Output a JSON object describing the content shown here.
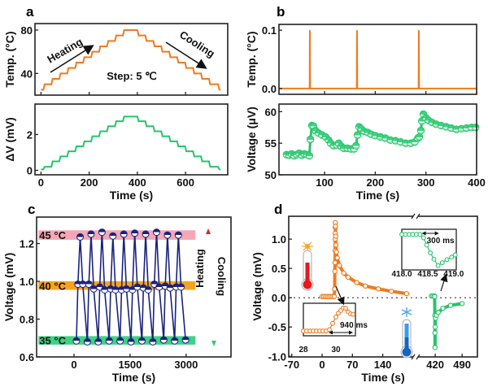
{
  "panel_labels": [
    "a",
    "b",
    "c",
    "d"
  ],
  "colors": {
    "orange": "#f07a1e",
    "green": "#27c46c",
    "navy": "#1a237e",
    "pink_band": "#f6a6b6",
    "orange_band": "#f7a21f",
    "green_band": "#3fd184"
  },
  "chart_data": [
    {
      "panel": "a-top",
      "type": "line",
      "xlim": [
        -25,
        775
      ],
      "ylim": [
        20,
        86
      ],
      "xticks": [
        "0",
        "200",
        "400",
        "600"
      ],
      "show_xtick_labels": false,
      "yticks": [
        "40",
        "80"
      ],
      "xlabel": "",
      "ylabel": "Temp. (°C)",
      "series": [
        {
          "style": "step",
          "color": "#f07a1e",
          "x": [
            0,
            10,
            43,
            76,
            109,
            142,
            175,
            208,
            241,
            274,
            307,
            340,
            400,
            433,
            466,
            499,
            532,
            565,
            598,
            631,
            664,
            697,
            735,
            740
          ],
          "y": [
            25,
            30,
            35,
            40,
            45,
            50,
            55,
            60,
            65,
            70,
            75,
            80,
            75,
            70,
            65,
            60,
            55,
            50,
            45,
            40,
            35,
            30,
            25,
            25
          ]
        }
      ],
      "annotations": [
        "Heating",
        "Cooling",
        "Step: 5 ℃"
      ]
    },
    {
      "panel": "a-bottom",
      "type": "line",
      "xlim": [
        -25,
        775
      ],
      "ylim": [
        -0.25,
        3.7
      ],
      "xticks": [
        "0",
        "200",
        "400",
        "600"
      ],
      "show_xtick_labels": true,
      "yticks": [
        "0",
        "2"
      ],
      "xlabel": "Time (s)",
      "ylabel": "ΔV (mV)",
      "series": [
        {
          "style": "step",
          "color": "#27c46c",
          "x": [
            0,
            10,
            43,
            76,
            109,
            142,
            175,
            208,
            241,
            274,
            307,
            340,
            400,
            433,
            466,
            499,
            532,
            565,
            598,
            631,
            664,
            697,
            735,
            740
          ],
          "y": [
            0.05,
            0.2,
            0.5,
            0.78,
            1.06,
            1.34,
            1.62,
            1.9,
            2.18,
            2.46,
            2.74,
            3.0,
            2.74,
            2.46,
            2.18,
            1.9,
            1.62,
            1.34,
            1.06,
            0.78,
            0.5,
            0.2,
            0.05,
            0.05
          ]
        }
      ]
    },
    {
      "panel": "b-top",
      "type": "line",
      "xlim": [
        10,
        400
      ],
      "ylim": [
        -0.01,
        0.11
      ],
      "xticks": [
        "100",
        "200",
        "300",
        "400"
      ],
      "show_xtick_labels": false,
      "yticks": [
        "0.0",
        "0.1"
      ],
      "xlabel": "",
      "ylabel": "Temp. (°C)",
      "series": [
        {
          "style": "line",
          "color": "#f07a1e",
          "points": [
            [
              10,
              0
            ],
            [
              70.5,
              0
            ],
            [
              71,
              0.1
            ],
            [
              71.5,
              0
            ],
            [
              163.5,
              0
            ],
            [
              164,
              0.1
            ],
            [
              164.5,
              0
            ],
            [
              285.5,
              0
            ],
            [
              286,
              0.1
            ],
            [
              286.5,
              0
            ],
            [
              400,
              0
            ]
          ]
        }
      ]
    },
    {
      "panel": "b-bottom",
      "type": "scatter",
      "xlim": [
        10,
        400
      ],
      "ylim": [
        50,
        61.2
      ],
      "xticks": [
        "100",
        "200",
        "300",
        "400"
      ],
      "show_xtick_labels": true,
      "yticks": [
        "50",
        "55",
        "60"
      ],
      "xlabel": "Time (s)",
      "ylabel": "Voltage (μV)",
      "series": [
        {
          "style": "marker-line",
          "color": "#27c46c",
          "points": [
            [
              25,
              53.2
            ],
            [
              30,
              53.1
            ],
            [
              35,
              53.3
            ],
            [
              40,
              53.0
            ],
            [
              45,
              53.2
            ],
            [
              50,
              53.4
            ],
            [
              55,
              53.1
            ],
            [
              60,
              53.3
            ],
            [
              65,
              53.2
            ],
            [
              70,
              53.0
            ],
            [
              72,
              55.6
            ],
            [
              75,
              57.8
            ],
            [
              78,
              57.7
            ],
            [
              82,
              57.0
            ],
            [
              88,
              56.6
            ],
            [
              95,
              56.3
            ],
            [
              102,
              56.0
            ],
            [
              108,
              55.5
            ],
            [
              112,
              55.0
            ],
            [
              118,
              54.6
            ],
            [
              124,
              54.7
            ],
            [
              128,
              55.0
            ],
            [
              133,
              54.5
            ],
            [
              138,
              54.2
            ],
            [
              145,
              54.2
            ],
            [
              152,
              54.1
            ],
            [
              158,
              54.1
            ],
            [
              162,
              54.6
            ],
            [
              165,
              56.3
            ],
            [
              168,
              57.6
            ],
            [
              172,
              57.3
            ],
            [
              178,
              56.9
            ],
            [
              185,
              56.7
            ],
            [
              192,
              56.4
            ],
            [
              200,
              56.2
            ],
            [
              210,
              56.0
            ],
            [
              220,
              55.8
            ],
            [
              230,
              55.5
            ],
            [
              240,
              55.4
            ],
            [
              250,
              55.2
            ],
            [
              260,
              55.0
            ],
            [
              270,
              55.0
            ],
            [
              278,
              55.2
            ],
            [
              284,
              55.8
            ],
            [
              287,
              56.0
            ],
            [
              290,
              57.0
            ],
            [
              292,
              58.5
            ],
            [
              295,
              59.6
            ],
            [
              300,
              59.0
            ],
            [
              305,
              58.6
            ],
            [
              312,
              58.3
            ],
            [
              320,
              58.0
            ],
            [
              330,
              57.8
            ],
            [
              340,
              57.6
            ],
            [
              350,
              57.4
            ],
            [
              360,
              57.2
            ],
            [
              370,
              57.3
            ],
            [
              380,
              57.4
            ],
            [
              390,
              57.5
            ],
            [
              398,
              57.5
            ]
          ]
        }
      ]
    },
    {
      "panel": "c",
      "type": "scatter",
      "xlim": [
        -1000,
        4200
      ],
      "ylim": [
        0.6,
        1.34
      ],
      "xticks": [
        "0",
        "1500",
        "3000"
      ],
      "show_xtick_labels": true,
      "yticks": [
        "0.6",
        "0.8",
        "1.0",
        "1.2"
      ],
      "xlabel": "Time (s)",
      "ylabel": "Voltage (mV)",
      "bands": [
        {
          "label": "45 °C",
          "range": [
            1.22,
            1.27
          ],
          "color": "#f6a6b6",
          "text_color": "#f07090"
        },
        {
          "label": "40 °C",
          "range": [
            0.955,
            1.0
          ],
          "color": "#f7a21f",
          "text_color": "#f08a10"
        },
        {
          "label": "35 °C",
          "range": [
            0.665,
            0.71
          ],
          "color": "#3fd184",
          "text_color": "#22c46a"
        }
      ],
      "band_time_range": [
        -950,
        3250
      ],
      "series": [
        {
          "style": "marker-line",
          "color": "#1a237e",
          "points": [
            [
              65,
              0.685
            ],
            [
              105,
              0.985
            ],
            [
              165,
              1.235
            ],
            [
              235,
              0.985
            ],
            [
              357,
              0.68
            ],
            [
              397,
              0.985
            ],
            [
              457,
              1.25
            ],
            [
              527,
              0.96
            ],
            [
              649,
              0.68
            ],
            [
              689,
              0.97
            ],
            [
              749,
              1.26
            ],
            [
              819,
              0.955
            ],
            [
              941,
              0.685
            ],
            [
              981,
              0.96
            ],
            [
              1041,
              1.24
            ],
            [
              1111,
              0.955
            ],
            [
              1233,
              0.685
            ],
            [
              1273,
              0.955
            ],
            [
              1333,
              1.25
            ],
            [
              1403,
              0.96
            ],
            [
              1525,
              0.68
            ],
            [
              1565,
              0.955
            ],
            [
              1625,
              1.255
            ],
            [
              1695,
              0.97
            ],
            [
              1817,
              0.685
            ],
            [
              1857,
              0.965
            ],
            [
              1917,
              1.25
            ],
            [
              1987,
              0.955
            ],
            [
              2109,
              0.68
            ],
            [
              2149,
              0.985
            ],
            [
              2209,
              1.26
            ],
            [
              2279,
              0.97
            ],
            [
              2401,
              0.69
            ],
            [
              2441,
              0.975
            ],
            [
              2501,
              1.245
            ],
            [
              2571,
              0.965
            ],
            [
              2693,
              0.685
            ],
            [
              2733,
              0.97
            ],
            [
              2793,
              1.245
            ],
            [
              2863,
              0.97
            ],
            [
              2985,
              0.69
            ]
          ]
        }
      ],
      "annotations": [
        "Heating",
        "Cooling"
      ]
    },
    {
      "panel": "d",
      "type": "scatter",
      "xlim_segments": [
        [
          -77,
          214
        ],
        [
          371,
          530
        ]
      ],
      "ylim": [
        -1.01,
        1.39
      ],
      "xticks": [
        "-70",
        "0",
        "70",
        "140",
        "420",
        "490"
      ],
      "show_xtick_labels": true,
      "yticks": [
        "-1.0",
        "-0.5",
        "0.0",
        "0.5",
        "1.0"
      ],
      "xlabel": "Time (s)",
      "ylabel": "Voltage (mV)",
      "series": [
        {
          "style": "open-marker",
          "color": "#f07a1e",
          "points": [
            [
              0,
              0.02
            ],
            [
              4,
              0.02
            ],
            [
              8,
              0.02
            ],
            [
              12,
              0.02
            ],
            [
              16,
              0.02
            ],
            [
              20,
              0.02
            ],
            [
              24,
              0.02
            ],
            [
              28,
              0.02
            ],
            [
              29,
              0.15
            ],
            [
              29.5,
              0.45
            ],
            [
              30,
              0.6
            ],
            [
              30.2,
              0.8
            ],
            [
              30.3,
              1.0
            ],
            [
              30.4,
              1.1
            ],
            [
              30.5,
              1.2
            ],
            [
              30.6,
              1.28
            ],
            [
              31,
              1.22
            ],
            [
              31.5,
              1.05
            ],
            [
              32,
              0.9
            ],
            [
              33,
              0.78
            ],
            [
              35,
              0.68
            ],
            [
              40,
              0.55
            ],
            [
              50,
              0.42
            ],
            [
              60,
              0.35
            ],
            [
              80,
              0.26
            ],
            [
              100,
              0.2
            ],
            [
              130,
              0.15
            ],
            [
              160,
              0.11
            ],
            [
              195,
              0.07
            ]
          ]
        },
        {
          "style": "open-marker",
          "color": "#27c46c",
          "points": [
            [
              410,
              0.03
            ],
            [
              414,
              0.03
            ],
            [
              418,
              0.03
            ],
            [
              418.5,
              0.02
            ],
            [
              419,
              -0.3
            ],
            [
              419.3,
              -0.6
            ],
            [
              419.5,
              -0.85
            ],
            [
              420,
              -0.5
            ],
            [
              421,
              -0.35
            ],
            [
              423,
              -0.3
            ],
            [
              428,
              -0.25
            ],
            [
              440,
              -0.18
            ],
            [
              460,
              -0.13
            ],
            [
              490,
              -0.1
            ]
          ]
        }
      ],
      "insets": [
        {
          "xlim": [
            28,
            31.2
          ],
          "ylim": [
            -0.2,
            1.5
          ],
          "xticks": [
            "28",
            "30"
          ],
          "annotation": "940 ms",
          "color": "#f07a1e",
          "points": [
            [
              28.0,
              0.05
            ],
            [
              28.2,
              0.05
            ],
            [
              28.4,
              0.05
            ],
            [
              28.6,
              0.05
            ],
            [
              28.8,
              0.05
            ],
            [
              29.0,
              0.05
            ],
            [
              29.2,
              0.05
            ],
            [
              29.4,
              0.05
            ],
            [
              29.6,
              0.12
            ],
            [
              29.8,
              0.45
            ],
            [
              30.0,
              0.78
            ],
            [
              30.15,
              0.98
            ],
            [
              30.3,
              1.12
            ],
            [
              30.45,
              1.25
            ],
            [
              30.6,
              1.24
            ],
            [
              30.75,
              1.05
            ],
            [
              30.9,
              0.95
            ],
            [
              31.05,
              0.92
            ]
          ]
        },
        {
          "xlim": [
            418.0,
            419.05
          ],
          "ylim": [
            -0.8,
            0.15
          ],
          "xticks": [
            "418.0",
            "418.5",
            "419.0"
          ],
          "annotation": "300 ms",
          "color": "#27c46c",
          "points": [
            [
              418.0,
              0.03
            ],
            [
              418.07,
              0.03
            ],
            [
              418.14,
              0.03
            ],
            [
              418.21,
              0.03
            ],
            [
              418.28,
              0.03
            ],
            [
              418.35,
              0.03
            ],
            [
              418.42,
              -0.05
            ],
            [
              418.48,
              -0.22
            ],
            [
              418.55,
              -0.4
            ],
            [
              418.62,
              -0.55
            ],
            [
              418.7,
              -0.7
            ],
            [
              418.78,
              -0.63
            ],
            [
              418.87,
              -0.56
            ],
            [
              418.96,
              -0.5
            ],
            [
              419.03,
              -0.45
            ]
          ]
        }
      ]
    }
  ]
}
